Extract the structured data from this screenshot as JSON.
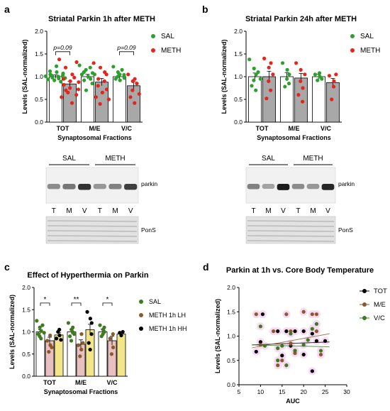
{
  "panel_labels": {
    "a": "a",
    "b": "b",
    "c": "c",
    "d": "d"
  },
  "legend_ab": {
    "sal": "SAL",
    "meth": "METH",
    "sal_color": "#2ca02c",
    "meth_color": "#e8231b"
  },
  "legend_c": {
    "sal": "SAL",
    "lh": "METH 1h LH",
    "hh": "METH 1h HH"
  },
  "legend_d": {
    "tot": "TOT",
    "me": "M/E",
    "vc": "V/C"
  },
  "blot_a": {
    "groups": [
      "SAL",
      "METH"
    ],
    "lanes": [
      "T",
      "M",
      "V",
      "T",
      "M",
      "V"
    ],
    "band": "parkin",
    "stain": "PonS"
  },
  "blot_b": {
    "groups": [
      "SAL",
      "METH"
    ],
    "lanes": [
      "T",
      "M",
      "V",
      "T",
      "M",
      "V"
    ],
    "band": "parkin",
    "stain": "PonS"
  },
  "chart_data": [
    {
      "panel": "a",
      "type": "bar",
      "title": "Striatal Parkin 1h after METH",
      "xlabel": "Synaptosomal Fractions",
      "ylabel": "Levels (SAL-normalized)",
      "ylim": [
        0,
        2.0
      ],
      "yticks": [
        "0.0",
        "0.5",
        "1.0",
        "1.5",
        "2.0"
      ],
      "categories": [
        "TOT",
        "M/E",
        "V/C"
      ],
      "series": [
        {
          "name": "SAL",
          "values": [
            1.0,
            1.0,
            1.0
          ],
          "errors": [
            0.04,
            0.05,
            0.05
          ],
          "points": [
            [
              1.01,
              0.94,
              1.05,
              1.12,
              0.98,
              1.02,
              0.92,
              1.1,
              1.23,
              0.96,
              1.0,
              0.89,
              1.07,
              1.03,
              0.97
            ],
            [
              1.25,
              1.05,
              0.92,
              1.1,
              0.7,
              1.15,
              1.0,
              0.95,
              1.2,
              1.08,
              0.85,
              1.05
            ],
            [
              1.22,
              0.95,
              1.1,
              1.0,
              0.92,
              1.05,
              1.15,
              0.97,
              1.04
            ]
          ]
        },
        {
          "name": "METH",
          "values": [
            0.84,
            0.88,
            0.8
          ],
          "errors": [
            0.06,
            0.08,
            0.09
          ],
          "points": [
            [
              1.38,
              0.55,
              0.82,
              0.95,
              0.7,
              1.2,
              0.65,
              0.9,
              0.75,
              1.05,
              0.42,
              0.98,
              1.32,
              0.6,
              0.88,
              0.72
            ],
            [
              1.3,
              0.55,
              0.95,
              0.8,
              1.2,
              0.4,
              0.65,
              1.1,
              0.9,
              0.72,
              1.05,
              0.5
            ],
            [
              1.05,
              0.55,
              0.9,
              0.7,
              0.95,
              0.42,
              0.85,
              0.62
            ]
          ]
        }
      ],
      "annotations": [
        {
          "text": "p=0.09",
          "category": "TOT"
        },
        {
          "text": "p=0.09",
          "category": "V/C"
        }
      ]
    },
    {
      "panel": "b",
      "type": "bar",
      "title": "Striatal Parkin 24h after METH",
      "xlabel": "Synaptosomal Fractions",
      "ylabel": "Levels (SAL-normalized)",
      "ylim": [
        0,
        2.0
      ],
      "yticks": [
        "0.0",
        "0.5",
        "1.0",
        "1.5",
        "2.0"
      ],
      "categories": [
        "TOT",
        "M/E",
        "V/C"
      ],
      "series": [
        {
          "name": "SAL",
          "values": [
            1.0,
            1.0,
            1.0
          ],
          "errors": [
            0.08,
            0.09,
            0.05
          ],
          "points": [
            [
              1.38,
              0.8,
              1.18,
              0.92,
              1.05,
              0.7,
              1.1,
              0.95
            ],
            [
              1.3,
              0.78,
              1.15,
              0.95,
              1.05,
              0.85
            ],
            [
              1.05,
              0.92,
              1.0,
              1.08,
              0.95
            ]
          ]
        },
        {
          "name": "METH",
          "values": [
            1.0,
            0.97,
            0.87
          ],
          "errors": [
            0.12,
            0.1,
            0.09
          ],
          "points": [
            [
              1.4,
              0.52,
              1.2,
              0.9,
              1.3,
              0.7,
              1.05
            ],
            [
              1.3,
              0.6,
              1.15,
              0.9,
              0.75,
              0.45,
              1.05
            ],
            [
              1.02,
              0.5,
              0.9,
              0.78,
              1.05
            ]
          ]
        }
      ]
    },
    {
      "panel": "c",
      "type": "bar",
      "title": "Effect of Hyperthermia on Parkin",
      "xlabel": "Synaptosomal Fractions",
      "ylabel": "Levels (SAL-normalized)",
      "ylim": [
        0,
        2.0
      ],
      "yticks": [
        "0.0",
        "0.5",
        "1.0",
        "1.5",
        "2.0"
      ],
      "categories": [
        "TOT",
        "M/E",
        "V/C"
      ],
      "series": [
        {
          "name": "SAL",
          "values": [
            1.0,
            1.0,
            1.0
          ],
          "errors": [
            0.05,
            0.06,
            0.06
          ],
          "points": [
            [
              1.25,
              0.95,
              1.1,
              0.9,
              1.02,
              0.85,
              1.15,
              0.98
            ],
            [
              1.2,
              0.9,
              1.05,
              0.8,
              1.1,
              1.0,
              0.95
            ],
            [
              1.15,
              0.9,
              1.05,
              0.95,
              1.0,
              1.1
            ]
          ]
        },
        {
          "name": "METH 1h LH",
          "values": [
            0.8,
            0.72,
            0.8
          ],
          "errors": [
            0.08,
            0.1,
            0.1
          ],
          "points": [
            [
              0.8,
              0.55,
              0.7,
              0.92,
              0.65
            ],
            [
              0.7,
              0.45,
              0.95,
              0.6,
              0.75
            ],
            [
              0.85,
              0.5,
              0.65,
              0.95
            ]
          ]
        },
        {
          "name": "METH 1h HH",
          "values": [
            0.93,
            1.05,
            0.95
          ],
          "errors": [
            0.05,
            0.12,
            0.03
          ],
          "points": [
            [
              0.85,
              1.0,
              0.92,
              1.05,
              0.82
            ],
            [
              1.45,
              0.75,
              1.3,
              0.6,
              1.2,
              0.95
            ],
            [
              0.98,
              0.92,
              1.0
            ]
          ]
        }
      ],
      "annotations": [
        {
          "text": "*",
          "category": "TOT"
        },
        {
          "text": "**",
          "category": "M/E"
        },
        {
          "text": "*",
          "category": "V/C"
        }
      ]
    },
    {
      "panel": "d",
      "type": "scatter",
      "title": "Parkin at 1h vs. Core Body Temperature",
      "xlabel": "AUC",
      "ylabel": "Levels (SAL-normalized)",
      "xlim": [
        5,
        30
      ],
      "ylim": [
        0,
        2.0
      ],
      "xticks": [
        "5",
        "10",
        "15",
        "20",
        "25",
        "30"
      ],
      "yticks": [
        "0.0",
        "0.5",
        "1.0",
        "1.5",
        "2.0"
      ],
      "series": [
        {
          "name": "TOT",
          "color": "#000000",
          "points": [
            [
              9,
              0.68
            ],
            [
              10,
              0.88
            ],
            [
              10.5,
              1.45
            ],
            [
              14,
              1.1
            ],
            [
              15,
              0.6
            ],
            [
              16,
              1.1
            ],
            [
              17,
              0.8
            ],
            [
              18,
              0.7
            ],
            [
              18,
              1.1
            ],
            [
              20,
              0.62
            ],
            [
              20,
              1.1
            ],
            [
              22,
              0.28
            ],
            [
              22,
              1.05
            ],
            [
              23,
              0.9
            ],
            [
              25,
              0.9
            ]
          ],
          "trend": [
            [
              8,
              0.82
            ],
            [
              26,
              0.88
            ]
          ]
        },
        {
          "name": "M/E",
          "color": "#8b5a2b",
          "points": [
            [
              9,
              1.45
            ],
            [
              10,
              0.82
            ],
            [
              13,
              1.1
            ],
            [
              14,
              0.4
            ],
            [
              15,
              0.5
            ],
            [
              16,
              1.45
            ],
            [
              17,
              1.1
            ],
            [
              17,
              0.85
            ],
            [
              18,
              0.65
            ],
            [
              20,
              1.5
            ],
            [
              22,
              1.45
            ],
            [
              23,
              1.45
            ],
            [
              23,
              1.1
            ],
            [
              24,
              0.62
            ]
          ],
          "trend": [
            [
              8,
              0.76
            ],
            [
              26,
              1.05
            ]
          ]
        },
        {
          "name": "V/C",
          "color": "#3f7a1f",
          "points": [
            [
              10,
              1.2
            ],
            [
              11,
              0.8
            ],
            [
              14,
              0.5
            ],
            [
              14,
              0.75
            ],
            [
              15,
              0.8
            ],
            [
              16,
              0.4
            ],
            [
              17,
              1.05
            ],
            [
              18,
              0.7
            ],
            [
              20,
              0.82
            ],
            [
              21,
              0.92
            ],
            [
              22,
              1.15
            ],
            [
              23,
              1.25
            ],
            [
              24,
              0.7
            ]
          ],
          "trend": [
            [
              8,
              0.82
            ],
            [
              26,
              0.78
            ]
          ]
        }
      ]
    }
  ]
}
